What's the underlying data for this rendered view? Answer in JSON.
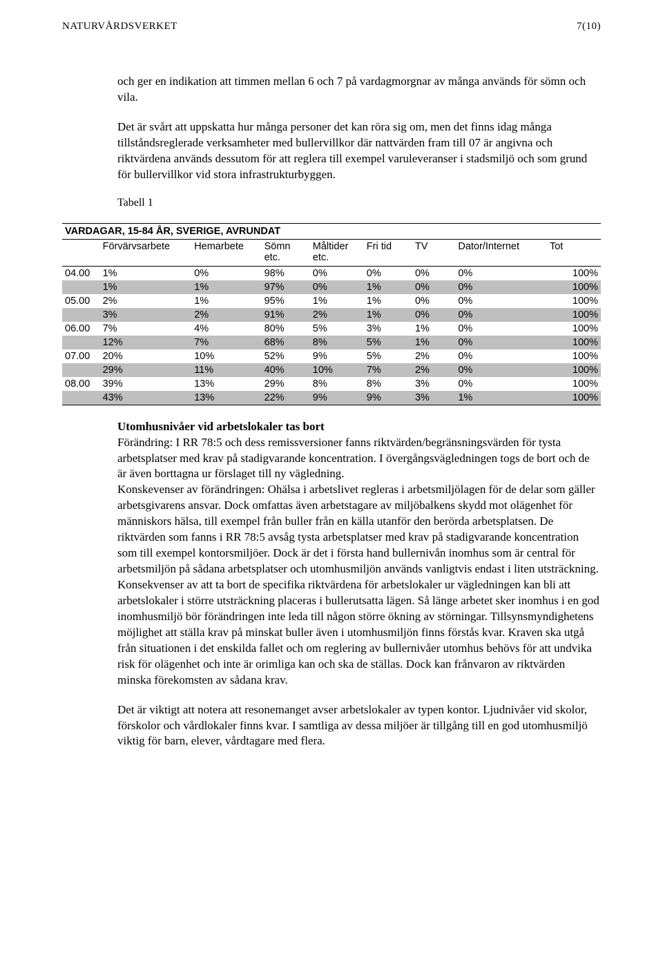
{
  "header": {
    "left": "NATURVÅRDSVERKET",
    "right": "7(10)"
  },
  "para1": "och ger en indikation att timmen mellan 6 och 7 på vardagmorgnar av många används för sömn och vila.",
  "para2": "Det är svårt att uppskatta hur många personer det kan röra sig om, men det finns idag många tillståndsreglerade verksamheter med bullervillkor där nattvärden fram till 07 är angivna och riktvärdena används dessutom för att reglera till exempel varuleveranser i stadsmiljö och som grund för bullervillkor vid stora infrastrukturbyggen.",
  "tabell_label": "Tabell 1",
  "table": {
    "title": "VARDAGAR, 15-84 ÅR, SVERIGE, AVRUNDAT",
    "columns": [
      "",
      "Förvärvsarbete",
      "Hemarbete",
      "Sömn\netc.",
      "Måltider\netc.",
      "Fri tid",
      "TV",
      "Dator/Internet",
      "Tot"
    ],
    "rows": [
      {
        "time": "04.00",
        "v": [
          "1%",
          "0%",
          "98%",
          "0%",
          "0%",
          "0%",
          "0%",
          "100%"
        ],
        "shaded": false
      },
      {
        "time": "",
        "v": [
          "1%",
          "1%",
          "97%",
          "0%",
          "1%",
          "0%",
          "0%",
          "100%"
        ],
        "shaded": true
      },
      {
        "time": "05.00",
        "v": [
          "2%",
          "1%",
          "95%",
          "1%",
          "1%",
          "0%",
          "0%",
          "100%"
        ],
        "shaded": false
      },
      {
        "time": "",
        "v": [
          "3%",
          "2%",
          "91%",
          "2%",
          "1%",
          "0%",
          "0%",
          "100%"
        ],
        "shaded": true
      },
      {
        "time": "06.00",
        "v": [
          "7%",
          "4%",
          "80%",
          "5%",
          "3%",
          "1%",
          "0%",
          "100%"
        ],
        "shaded": false
      },
      {
        "time": "",
        "v": [
          "12%",
          "7%",
          "68%",
          "8%",
          "5%",
          "1%",
          "0%",
          "100%"
        ],
        "shaded": true
      },
      {
        "time": "07.00",
        "v": [
          "20%",
          "10%",
          "52%",
          "9%",
          "5%",
          "2%",
          "0%",
          "100%"
        ],
        "shaded": false
      },
      {
        "time": "",
        "v": [
          "29%",
          "11%",
          "40%",
          "10%",
          "7%",
          "2%",
          "0%",
          "100%"
        ],
        "shaded": true
      },
      {
        "time": "08.00",
        "v": [
          "39%",
          "13%",
          "29%",
          "8%",
          "8%",
          "3%",
          "0%",
          "100%"
        ],
        "shaded": false
      },
      {
        "time": "",
        "v": [
          "43%",
          "13%",
          "22%",
          "9%",
          "9%",
          "3%",
          "1%",
          "100%"
        ],
        "shaded": true
      }
    ]
  },
  "section2": {
    "title": "Utomhusnivåer vid arbetslokaler tas bort",
    "p1a": "Förändring:",
    "p1b": " I RR 78:5 och dess remissversioner fanns riktvärden/begränsningsvärden för tysta arbetsplatser med krav på stadigvarande koncentration. I övergångsvägledningen togs de bort och de är även borttagna ur förslaget till ny vägledning.",
    "p2a": "Konskevenser av förändringen:",
    "p2b": " Ohälsa i arbetslivet regleras i arbetsmiljölagen för de delar som gäller arbetsgivarens ansvar. Dock omfattas även arbetstagare av miljöbalkens skydd mot olägenhet för människors hälsa, till exempel från buller från en källa utanför den berörda arbetsplatsen. De riktvärden som fanns i RR 78:5 avsåg tysta arbetsplatser med krav på stadigvarande koncentration som till exempel kontorsmiljöer. Dock är det i första hand bullernivån inomhus som är central för arbetsmiljön på sådana arbetsplatser och utomhusmiljön används vanligtvis endast i liten utsträckning. Konsekvenser av att ta bort de specifika riktvärdena för arbetslokaler ur vägledningen kan bli att arbetslokaler i större utsträckning placeras i bullerutsatta lägen. Så länge arbetet sker inomhus i en god inomhusmiljö bör förändringen inte leda till någon större ökning av störningar. Tillsynsmyndighetens möjlighet att ställa krav på minskat buller även i utomhusmiljön finns förstås kvar. Kraven ska utgå från situationen i det enskilda fallet och om reglering av bullernivåer utomhus behövs för att undvika risk för olägenhet och inte är orimliga kan och ska de ställas. Dock kan frånvaron av riktvärden minska förekomsten av sådana krav."
  },
  "para_last": "Det är viktigt att notera att resonemanget avser arbetslokaler av typen kontor. Ljudnivåer vid skolor, förskolor och vårdlokaler finns kvar. I samtliga av dessa miljöer är tillgång till en god utomhusmiljö viktig för barn, elever, vårdtagare med flera."
}
